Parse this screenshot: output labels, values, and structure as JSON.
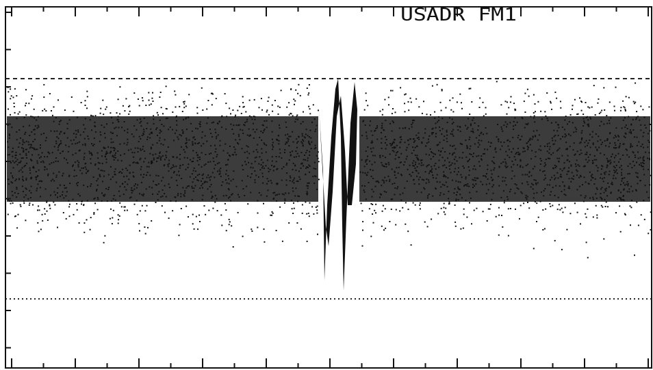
{
  "label": "USADR FM1"
}
